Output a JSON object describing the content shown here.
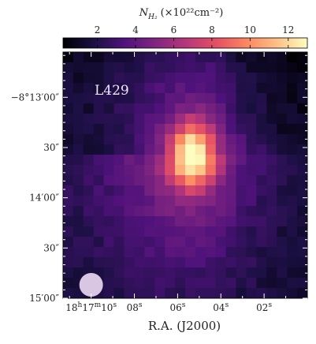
{
  "chart_data": {
    "type": "heatmap",
    "title": "",
    "annotation": "L429",
    "colorbar": {
      "label": "N_H2 (×10^22 cm^-2)",
      "label_parts": {
        "symbol": "N",
        "subscript": "H₂",
        "units": "(×10²²cm⁻²)"
      },
      "ticks": [
        2,
        4,
        6,
        8,
        10,
        12
      ],
      "vmin": 0.2,
      "vmax": 13.0,
      "colormap": "magma",
      "position": "top"
    },
    "xlabel": "R.A. (J2000)",
    "ylabel": "",
    "x_tick_labels": [
      {
        "text": "18h17m10s",
        "parts": {
          "h": "18",
          "m": "17",
          "s": "10"
        },
        "ra_s": 10
      },
      {
        "text": "08s",
        "ra_s": 8
      },
      {
        "text": "06s",
        "ra_s": 6
      },
      {
        "text": "04s",
        "ra_s": 4
      },
      {
        "text": "02s",
        "ra_s": 2
      }
    ],
    "xlim_ra_s": [
      11.3,
      0.0
    ],
    "y_tick_labels": [
      {
        "text": "−8°13′00″",
        "dec_arcsec": 0
      },
      {
        "text": "30″",
        "dec_arcsec": 30
      },
      {
        "text": "14′00″",
        "dec_arcsec": 60
      },
      {
        "text": "30″",
        "dec_arcsec": 90
      },
      {
        "text": "15′00″",
        "dec_arcsec": 120
      }
    ],
    "ylim_dec_arcsec_below_13m": [
      -27,
      120
    ],
    "grid": {
      "nx": 24,
      "ny": 24
    },
    "peak": {
      "value": 12.8,
      "ra_s": 5.3,
      "dec_arcsec": 34
    },
    "beam": {
      "color": "#d8c6e3",
      "ra_s": 10.0,
      "dec_arcsec": 112
    },
    "background_level": 1.3
  }
}
